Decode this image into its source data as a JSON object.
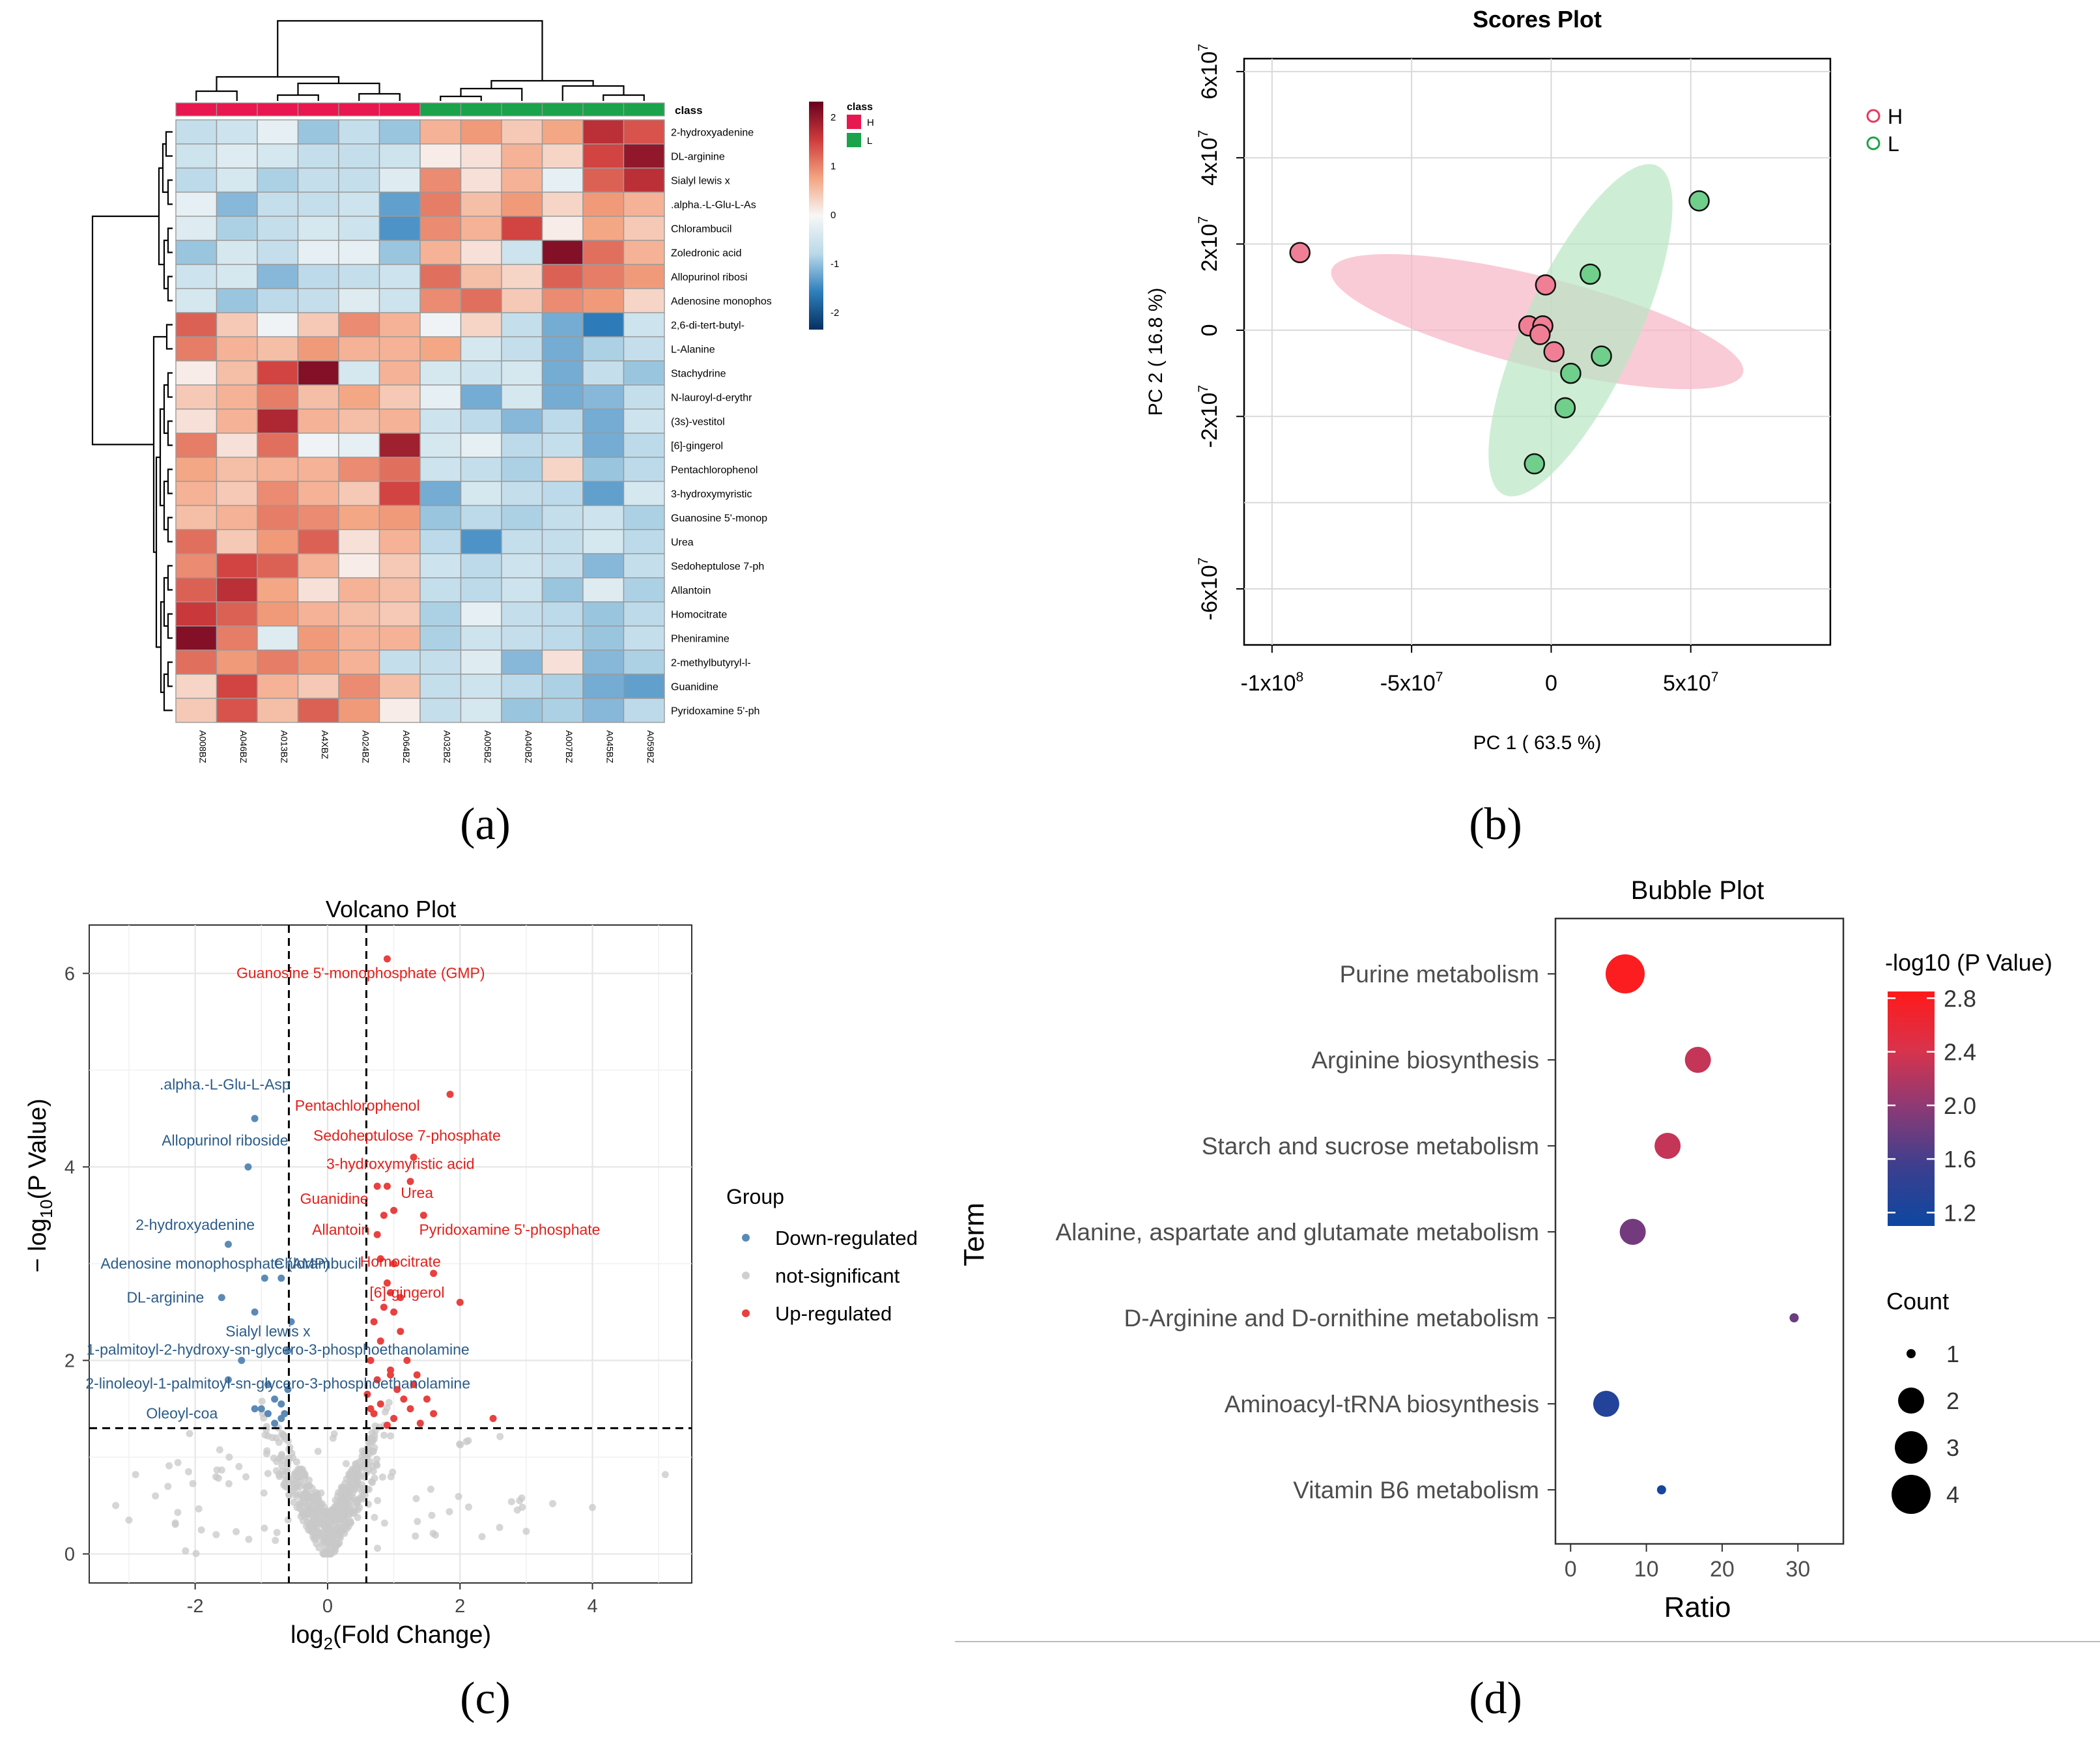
{
  "figure_labels": {
    "a": "(a)",
    "b": "(b)",
    "c": "(c)",
    "d": "(d)"
  },
  "chart_data": [
    {
      "type": "heatmap",
      "panel": "a",
      "legend_title": "class",
      "class_legend": [
        {
          "label": "H",
          "color": "#e8174f"
        },
        {
          "label": "L",
          "color": "#1aa34a"
        }
      ],
      "color_scale_ticks": [
        "2",
        "1",
        "0",
        "-1",
        "-2"
      ],
      "color_scale": [
        "#053061",
        "#2f7fbd",
        "#b9d9e9",
        "#f7f7f7",
        "#f4a380",
        "#ce3b3c",
        "#67001f"
      ],
      "class_row_label": "class",
      "samples": [
        "A008BZ",
        "A046BZ",
        "A013BZ",
        "A4XBZ",
        "A024BZ",
        "A064BZ",
        "A032BZ",
        "A005BZ",
        "A040BZ",
        "A007BZ",
        "A045BZ",
        "A059BZ"
      ],
      "sample_class": [
        "H",
        "H",
        "H",
        "H",
        "H",
        "H",
        "L",
        "L",
        "L",
        "L",
        "L",
        "L"
      ],
      "rows": [
        "2-hydroxyadenine",
        "DL-arginine",
        "Sialyl lewis x",
        ".alpha.-L-Glu-L-As",
        "Chlorambucil",
        "Zoledronic acid",
        "Allopurinol ribosi",
        "Adenosine monophos",
        "2,6-di-tert-butyl-",
        "L-Alanine",
        "Stachydrine",
        "N-lauroyl-d-erythr",
        "(3s)-vestitol",
        "[6]-gingerol",
        "Pentachlorophenol",
        "3-hydroxymyristic",
        "Guanosine 5'-monop",
        "Urea",
        "Sedoheptulose 7-ph",
        "Allantoin",
        "Homocitrate",
        "Pheniramine",
        "2-methylbutyryl-l-",
        "Guanidine",
        "Pyridoxamine 5'-ph"
      ],
      "values": [
        [
          -0.6,
          -0.5,
          -0.2,
          -0.9,
          -0.6,
          -0.9,
          0.6,
          0.8,
          0.4,
          0.7,
          1.6,
          1.3
        ],
        [
          -0.5,
          -0.3,
          -0.4,
          -0.6,
          -0.6,
          -0.5,
          0.1,
          0.2,
          0.6,
          0.3,
          1.4,
          1.9
        ],
        [
          -0.7,
          -0.4,
          -0.8,
          -0.6,
          -0.6,
          -0.3,
          0.9,
          0.2,
          0.6,
          -0.2,
          1.2,
          1.6
        ],
        [
          -0.2,
          -1.0,
          -0.6,
          -0.6,
          -0.5,
          -1.2,
          1.0,
          0.5,
          0.8,
          0.3,
          0.8,
          0.6
        ],
        [
          -0.3,
          -0.8,
          -0.6,
          -0.4,
          -0.5,
          -1.3,
          0.9,
          0.6,
          1.4,
          0.1,
          0.7,
          0.4
        ],
        [
          -0.9,
          -0.4,
          -0.6,
          -0.2,
          -0.2,
          -0.9,
          0.6,
          0.2,
          -0.5,
          2.0,
          1.1,
          0.6
        ],
        [
          -0.5,
          -0.4,
          -1.0,
          -0.7,
          -0.6,
          -0.5,
          1.1,
          0.5,
          0.3,
          1.2,
          1.0,
          0.8
        ],
        [
          -0.4,
          -0.9,
          -0.7,
          -0.6,
          -0.3,
          -0.5,
          0.9,
          1.1,
          0.4,
          0.9,
          0.8,
          0.3
        ],
        [
          1.2,
          0.4,
          -0.1,
          0.4,
          0.9,
          0.6,
          -0.1,
          0.3,
          -0.6,
          -1.1,
          -1.5,
          -0.5
        ],
        [
          1.0,
          0.6,
          0.5,
          0.8,
          0.6,
          0.6,
          0.7,
          -0.4,
          -0.6,
          -1.1,
          -0.8,
          -0.6
        ],
        [
          0.1,
          0.5,
          1.4,
          2.0,
          -0.4,
          0.6,
          -0.4,
          -0.5,
          -0.4,
          -1.1,
          -0.6,
          -0.9
        ],
        [
          0.4,
          0.6,
          1.0,
          0.5,
          0.7,
          0.4,
          -0.2,
          -1.1,
          -0.4,
          -1.1,
          -1.0,
          -0.6
        ],
        [
          0.2,
          0.6,
          1.7,
          0.6,
          0.5,
          0.6,
          -0.5,
          -0.7,
          -1.0,
          -0.7,
          -1.1,
          -0.5
        ],
        [
          1.0,
          0.2,
          1.1,
          -0.1,
          -0.2,
          1.8,
          -0.4,
          -0.2,
          -0.7,
          -0.6,
          -1.1,
          -0.7
        ],
        [
          0.7,
          0.5,
          0.6,
          0.6,
          0.9,
          1.1,
          -0.5,
          -0.6,
          -0.8,
          0.3,
          -0.9,
          -0.7
        ],
        [
          0.6,
          0.4,
          0.9,
          0.6,
          0.4,
          1.4,
          -1.1,
          -0.4,
          -0.6,
          -0.7,
          -1.2,
          -0.4
        ],
        [
          0.5,
          0.6,
          1.0,
          0.9,
          0.7,
          0.8,
          -0.9,
          -0.7,
          -0.8,
          -0.6,
          -0.5,
          -0.8
        ],
        [
          1.1,
          0.4,
          0.8,
          1.2,
          0.2,
          0.6,
          -0.7,
          -1.3,
          -0.6,
          -0.6,
          -0.4,
          -0.7
        ],
        [
          0.9,
          1.4,
          1.2,
          0.6,
          0.1,
          0.4,
          -0.5,
          -0.7,
          -0.5,
          -0.6,
          -1.0,
          -0.6
        ],
        [
          1.2,
          1.6,
          0.7,
          0.2,
          0.6,
          0.5,
          -0.6,
          -0.7,
          -0.5,
          -0.9,
          -0.3,
          -0.8
        ],
        [
          1.5,
          1.2,
          0.8,
          0.6,
          0.5,
          0.4,
          -0.8,
          -0.2,
          -0.6,
          -0.7,
          -0.9,
          -0.7
        ],
        [
          2.0,
          1.0,
          -0.3,
          0.8,
          0.6,
          0.6,
          -0.8,
          -0.5,
          -0.6,
          -0.7,
          -0.9,
          -0.6
        ],
        [
          1.1,
          0.8,
          1.0,
          0.8,
          0.6,
          -0.6,
          -0.6,
          -0.3,
          -1.0,
          0.2,
          -1.0,
          -0.8
        ],
        [
          0.3,
          1.4,
          0.6,
          0.4,
          0.9,
          0.5,
          -0.6,
          -0.5,
          -0.7,
          -0.8,
          -1.1,
          -1.2
        ],
        [
          0.4,
          1.3,
          0.5,
          1.2,
          0.8,
          0.1,
          -0.6,
          -0.4,
          -0.9,
          -0.8,
          -1.0,
          -0.7
        ]
      ]
    },
    {
      "type": "scatter",
      "panel": "b",
      "title": "Scores Plot",
      "xlabel": "PC 1 ( 63.5 %)",
      "ylabel": "PC 2 ( 16.8 %)",
      "xlim": [
        -110000000.0,
        100000000.0
      ],
      "ylim": [
        -73000000.0,
        63000000.0
      ],
      "x_ticks": [
        {
          "v": -100000000.0,
          "label": "-1x10^8"
        },
        {
          "v": -50000000.0,
          "label": "-5x10^7"
        },
        {
          "v": 0,
          "label": "0"
        },
        {
          "v": 50000000.0,
          "label": "5x10^7"
        }
      ],
      "y_ticks": [
        {
          "v": 60000000.0,
          "label": "6x10^7"
        },
        {
          "v": 40000000.0,
          "label": "4x10^7"
        },
        {
          "v": 20000000.0,
          "label": "2x10^7"
        },
        {
          "v": 0,
          "label": "0"
        },
        {
          "v": -20000000.0,
          "label": "-2x10^7"
        },
        {
          "v": -60000000.0,
          "label": "-6x10^7"
        }
      ],
      "legend": [
        {
          "label": "H",
          "color": "#e8365d"
        },
        {
          "label": "L",
          "color": "#1aa34a"
        }
      ],
      "series": [
        {
          "name": "H",
          "fill": "#f07f95",
          "ellipse": {
            "cx": -5000000.0,
            "cy": 2000000.0,
            "rx": 76000000.0,
            "ry": 10500000.0,
            "angle_deg": -14,
            "color": "#f7b5c5"
          },
          "points": [
            [
              -90000000.0,
              18000000.0
            ],
            [
              -2000000.0,
              10500000.0
            ],
            [
              -8000000.0,
              1000000.0
            ],
            [
              -3000000.0,
              1000000.0
            ],
            [
              -4000000.0,
              -1000000.0
            ],
            [
              1000000.0,
              -5000000.0
            ]
          ]
        },
        {
          "name": "L",
          "fill": "#6fcf8b",
          "ellipse": {
            "cx": 10500000.0,
            "cy": 0,
            "rx": 65000000.0,
            "ry": 13000000.0,
            "angle_deg": 65,
            "color": "#b9e6c3"
          },
          "points": [
            [
              53000000.0,
              30000000.0
            ],
            [
              14000000.0,
              13000000.0
            ],
            [
              18000000.0,
              -6000000.0
            ],
            [
              7000000.0,
              -10000000.0
            ],
            [
              5000000.0,
              -18000000.0
            ],
            [
              -6000000.0,
              -31000000.0
            ]
          ]
        }
      ]
    },
    {
      "type": "scatter",
      "panel": "c",
      "title": "Volcano Plot",
      "xlabel": "log2(Fold Change)",
      "ylabel": "− log10(P Value)",
      "xlim": [
        -3.6,
        5.5
      ],
      "ylim": [
        -0.3,
        6.5
      ],
      "x_ticks": [
        -2,
        0,
        2,
        4
      ],
      "y_ticks": [
        0,
        2,
        4,
        6
      ],
      "thresholds": {
        "fc": [
          -0.585,
          0.585
        ],
        "p": 1.3
      },
      "legend_title": "Group",
      "legend": [
        {
          "label": "Down-regulated",
          "color": "#5b8ab6"
        },
        {
          "label": "not-significant",
          "color": "#cfcfcf"
        },
        {
          "label": "Up-regulated",
          "color": "#e8413f"
        }
      ],
      "down_points": [
        [
          -1.1,
          4.5
        ],
        [
          -1.2,
          4.0
        ],
        [
          -1.5,
          3.2
        ],
        [
          -0.95,
          2.85
        ],
        [
          -0.7,
          2.85
        ],
        [
          -1.6,
          2.65
        ],
        [
          -1.1,
          2.5
        ],
        [
          -0.55,
          2.4
        ],
        [
          -0.6,
          2.1
        ],
        [
          -1.3,
          2.0
        ],
        [
          -0.6,
          1.7
        ],
        [
          -0.9,
          1.75
        ],
        [
          -1.5,
          1.8
        ],
        [
          -0.8,
          1.6
        ],
        [
          -0.7,
          1.55
        ],
        [
          -1.0,
          1.5
        ],
        [
          -0.9,
          1.45
        ],
        [
          -0.7,
          1.4
        ],
        [
          -1.1,
          1.5
        ],
        [
          -0.8,
          1.35
        ],
        [
          -0.65,
          1.45
        ]
      ],
      "up_points": [
        [
          0.9,
          6.15
        ],
        [
          1.85,
          4.75
        ],
        [
          1.3,
          4.1
        ],
        [
          1.25,
          3.85
        ],
        [
          0.75,
          3.8
        ],
        [
          0.9,
          3.8
        ],
        [
          1.0,
          3.55
        ],
        [
          0.85,
          3.5
        ],
        [
          1.45,
          3.5
        ],
        [
          0.75,
          3.3
        ],
        [
          0.8,
          3.05
        ],
        [
          1.0,
          3.0
        ],
        [
          1.6,
          2.9
        ],
        [
          0.9,
          2.8
        ],
        [
          1.1,
          2.65
        ],
        [
          0.95,
          2.7
        ],
        [
          2.0,
          2.6
        ],
        [
          0.85,
          2.55
        ],
        [
          1.0,
          2.5
        ],
        [
          0.7,
          2.4
        ],
        [
          1.1,
          2.3
        ],
        [
          0.8,
          2.2
        ],
        [
          0.65,
          2.0
        ],
        [
          1.2,
          2.0
        ],
        [
          0.95,
          1.9
        ],
        [
          0.75,
          1.8
        ],
        [
          1.3,
          1.75
        ],
        [
          1.05,
          1.7
        ],
        [
          0.6,
          1.65
        ],
        [
          1.5,
          1.6
        ],
        [
          0.8,
          1.55
        ],
        [
          1.25,
          1.5
        ],
        [
          1.6,
          1.45
        ],
        [
          2.5,
          1.4
        ],
        [
          0.7,
          1.45
        ],
        [
          1.0,
          1.4
        ],
        [
          1.4,
          1.35
        ],
        [
          0.9,
          1.33
        ],
        [
          1.15,
          1.6
        ],
        [
          0.65,
          1.5
        ],
        [
          1.35,
          1.85
        ],
        [
          0.95,
          1.85
        ]
      ],
      "labels_down": [
        {
          "text": ".alpha.-L-Glu-L-Asp",
          "x": -1.55,
          "y": 4.8
        },
        {
          "text": "Allopurinol riboside",
          "x": -1.55,
          "y": 4.22
        },
        {
          "text": "2-hydroxyadenine",
          "x": -2.0,
          "y": 3.35
        },
        {
          "text": "Adenosine monophosphate (AMP)",
          "x": -1.7,
          "y": 2.95
        },
        {
          "text": "Chlorambucil",
          "x": -0.15,
          "y": 2.95
        },
        {
          "text": "DL-arginine",
          "x": -2.45,
          "y": 2.6
        },
        {
          "text": "Sialyl lewis x",
          "x": -0.9,
          "y": 2.25
        },
        {
          "text": "1-palmitoyl-2-hydroxy-sn-glycero-3-phosphoethanolamine",
          "x": -0.75,
          "y": 2.06
        },
        {
          "text": "2-linoleoyl-1-palmitoyl-sn-glycero-3-phosphoethanolamine",
          "x": -0.75,
          "y": 1.71
        },
        {
          "text": "Oleoyl-coa",
          "x": -2.2,
          "y": 1.4
        }
      ],
      "labels_up": [
        {
          "text": "Guanosine 5'-monophosphate (GMP)",
          "x": 0.5,
          "y": 5.95
        },
        {
          "text": "Pentachlorophenol",
          "x": 0.45,
          "y": 4.58
        },
        {
          "text": "Sedoheptulose 7-phosphate",
          "x": 1.2,
          "y": 4.27
        },
        {
          "text": "3-hydroxymyristic acid",
          "x": 1.1,
          "y": 3.98
        },
        {
          "text": "Guanidine",
          "x": 0.1,
          "y": 3.62
        },
        {
          "text": "Urea",
          "x": 1.35,
          "y": 3.68
        },
        {
          "text": "Pyridoxamine 5'-phosphate",
          "x": 2.75,
          "y": 3.3
        },
        {
          "text": "Allantoin",
          "x": 0.2,
          "y": 3.3
        },
        {
          "text": "Homocitrate",
          "x": 1.1,
          "y": 2.97
        },
        {
          "text": "[6]-gingerol",
          "x": 1.2,
          "y": 2.65
        }
      ]
    },
    {
      "type": "scatter",
      "panel": "d",
      "title": "Bubble Plot",
      "xlabel": "Ratio",
      "ylabel": "Term",
      "xlim": [
        -2,
        36
      ],
      "x_ticks": [
        0,
        10,
        20,
        30
      ],
      "color_legend_title": "-log10 (P Value)",
      "color_ticks": [
        2.8,
        2.4,
        2.0,
        1.6,
        1.2
      ],
      "color_range": [
        1.1,
        2.85
      ],
      "size_legend_title": "Count",
      "size_ticks": [
        1,
        2,
        3,
        4
      ],
      "terms": [
        {
          "name": "Purine metabolism",
          "ratio": 7.2,
          "count": 4,
          "neglogp": 2.8
        },
        {
          "name": "Arginine biosynthesis",
          "ratio": 16.8,
          "count": 2,
          "neglogp": 2.3
        },
        {
          "name": "Starch and sucrose metabolism",
          "ratio": 12.8,
          "count": 2,
          "neglogp": 2.3
        },
        {
          "name": "Alanine, aspartate and glutamate metabolism",
          "ratio": 8.2,
          "count": 2,
          "neglogp": 1.85
        },
        {
          "name": "D-Arginine and D-ornithine metabolism",
          "ratio": 29.5,
          "count": 1,
          "neglogp": 1.8
        },
        {
          "name": "Aminoacyl-tRNA biosynthesis",
          "ratio": 4.7,
          "count": 2,
          "neglogp": 1.3
        },
        {
          "name": "Vitamin B6 metabolism",
          "ratio": 12.0,
          "count": 1,
          "neglogp": 1.2
        }
      ]
    }
  ]
}
